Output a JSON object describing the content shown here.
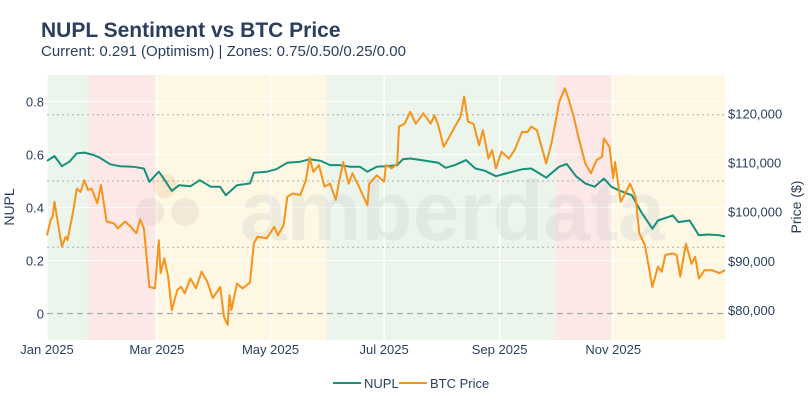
{
  "title": "NUPL Sentiment vs BTC Price",
  "subtitle": "Current: 0.291 (Optimism) | Zones: 0.75/0.50/0.25/0.00",
  "watermark": "amberdata",
  "chart_data": {
    "type": "line",
    "xlabel": "",
    "ylabel": "NUPL",
    "y2label": "Price ($)",
    "xlim": [
      "2025-01-01",
      "2025-12-31"
    ],
    "ylim": [
      -0.1,
      0.9
    ],
    "y2lim": [
      73900,
      127800
    ],
    "x_ticks": [
      {
        "date": "2025-01-01",
        "label": "Jan 2025"
      },
      {
        "date": "2025-03-01",
        "label": "Mar 2025"
      },
      {
        "date": "2025-05-01",
        "label": "May 2025"
      },
      {
        "date": "2025-07-01",
        "label": "Jul 2025"
      },
      {
        "date": "2025-09-01",
        "label": "Sep 2025"
      },
      {
        "date": "2025-11-01",
        "label": "Nov 2025"
      }
    ],
    "y_ticks": [
      {
        "v": 0,
        "label": "0"
      },
      {
        "v": 0.2,
        "label": "0.2"
      },
      {
        "v": 0.4,
        "label": "0.4"
      },
      {
        "v": 0.6,
        "label": "0.6"
      },
      {
        "v": 0.8,
        "label": "0.8"
      }
    ],
    "y2_ticks": [
      {
        "v": 80000,
        "label": "$80,000"
      },
      {
        "v": 90000,
        "label": "$90,000"
      },
      {
        "v": 100000,
        "label": "$100,000"
      },
      {
        "v": 110000,
        "label": "$110,000"
      },
      {
        "v": 120000,
        "label": "$120,000"
      }
    ],
    "zone_lines": [
      0.75,
      0.5,
      0.25,
      0
    ],
    "grid": true,
    "legend_position": "bottom",
    "zones": [
      {
        "start": "2025-01-01",
        "end": "2025-01-23",
        "color": "#ebf5ec"
      },
      {
        "start": "2025-01-23",
        "end": "2025-02-28",
        "color": "#fde8e8"
      },
      {
        "start": "2025-02-28",
        "end": "2025-05-31",
        "color": "#fdf7e4"
      },
      {
        "start": "2025-05-31",
        "end": "2025-10-01",
        "color": "#ebf5ec"
      },
      {
        "start": "2025-10-01",
        "end": "2025-10-31",
        "color": "#fde8e8"
      },
      {
        "start": "2025-10-31",
        "end": "2025-12-31",
        "color": "#fdf7e4"
      }
    ],
    "series": [
      {
        "name": "NUPL",
        "axis": "left",
        "color": "#16907a",
        "points": [
          [
            "2025-01-01",
            0.576
          ],
          [
            "2025-01-05",
            0.594
          ],
          [
            "2025-01-09",
            0.556
          ],
          [
            "2025-01-13",
            0.573
          ],
          [
            "2025-01-17",
            0.604
          ],
          [
            "2025-01-21",
            0.607
          ],
          [
            "2025-01-26",
            0.598
          ],
          [
            "2025-01-29",
            0.589
          ],
          [
            "2025-02-04",
            0.563
          ],
          [
            "2025-02-09",
            0.556
          ],
          [
            "2025-02-16",
            0.554
          ],
          [
            "2025-02-22",
            0.547
          ],
          [
            "2025-02-25",
            0.497
          ],
          [
            "2025-03-02",
            0.535
          ],
          [
            "2025-03-04",
            0.516
          ],
          [
            "2025-03-09",
            0.463
          ],
          [
            "2025-03-13",
            0.484
          ],
          [
            "2025-03-19",
            0.48
          ],
          [
            "2025-03-24",
            0.503
          ],
          [
            "2025-03-30",
            0.478
          ],
          [
            "2025-04-04",
            0.478
          ],
          [
            "2025-04-07",
            0.446
          ],
          [
            "2025-04-13",
            0.484
          ],
          [
            "2025-04-20",
            0.491
          ],
          [
            "2025-04-22",
            0.531
          ],
          [
            "2025-04-29",
            0.535
          ],
          [
            "2025-05-04",
            0.544
          ],
          [
            "2025-05-10",
            0.569
          ],
          [
            "2025-05-17",
            0.573
          ],
          [
            "2025-05-22",
            0.582
          ],
          [
            "2025-05-28",
            0.576
          ],
          [
            "2025-06-02",
            0.56
          ],
          [
            "2025-06-07",
            0.56
          ],
          [
            "2025-06-13",
            0.554
          ],
          [
            "2025-06-18",
            0.554
          ],
          [
            "2025-06-22",
            0.535
          ],
          [
            "2025-06-27",
            0.554
          ],
          [
            "2025-07-02",
            0.556
          ],
          [
            "2025-07-08",
            0.56
          ],
          [
            "2025-07-11",
            0.582
          ],
          [
            "2025-07-15",
            0.585
          ],
          [
            "2025-07-21",
            0.579
          ],
          [
            "2025-07-30",
            0.569
          ],
          [
            "2025-08-03",
            0.55
          ],
          [
            "2025-08-08",
            0.56
          ],
          [
            "2025-08-14",
            0.579
          ],
          [
            "2025-08-19",
            0.547
          ],
          [
            "2025-08-24",
            0.539
          ],
          [
            "2025-08-30",
            0.518
          ],
          [
            "2025-09-04",
            0.528
          ],
          [
            "2025-09-13",
            0.544
          ],
          [
            "2025-09-18",
            0.547
          ],
          [
            "2025-09-26",
            0.513
          ],
          [
            "2025-10-03",
            0.554
          ],
          [
            "2025-10-07",
            0.564
          ],
          [
            "2025-10-12",
            0.518
          ],
          [
            "2025-10-17",
            0.491
          ],
          [
            "2025-10-22",
            0.478
          ],
          [
            "2025-10-27",
            0.509
          ],
          [
            "2025-10-31",
            0.478
          ],
          [
            "2025-11-04",
            0.465
          ],
          [
            "2025-11-11",
            0.446
          ],
          [
            "2025-11-16",
            0.383
          ],
          [
            "2025-11-22",
            0.32
          ],
          [
            "2025-11-25",
            0.351
          ],
          [
            "2025-12-03",
            0.37
          ],
          [
            "2025-12-06",
            0.345
          ],
          [
            "2025-12-12",
            0.351
          ],
          [
            "2025-12-17",
            0.295
          ],
          [
            "2025-12-22",
            0.298
          ],
          [
            "2025-12-28",
            0.295
          ],
          [
            "2025-12-31",
            0.291
          ]
        ]
      },
      {
        "name": "BTC Price",
        "axis": "right",
        "color": "#f7931a",
        "points": [
          [
            "2025-01-01",
            95200
          ],
          [
            "2025-01-03",
            98300
          ],
          [
            "2025-01-04",
            99000
          ],
          [
            "2025-01-05",
            102000
          ],
          [
            "2025-01-07",
            97300
          ],
          [
            "2025-01-09",
            92900
          ],
          [
            "2025-01-11",
            94900
          ],
          [
            "2025-01-12",
            94200
          ],
          [
            "2025-01-15",
            100000
          ],
          [
            "2025-01-17",
            104700
          ],
          [
            "2025-01-19",
            104000
          ],
          [
            "2025-01-21",
            106400
          ],
          [
            "2025-01-23",
            104400
          ],
          [
            "2025-01-25",
            104700
          ],
          [
            "2025-01-28",
            101700
          ],
          [
            "2025-01-30",
            105400
          ],
          [
            "2025-02-02",
            98000
          ],
          [
            "2025-02-06",
            97600
          ],
          [
            "2025-02-08",
            96600
          ],
          [
            "2025-02-12",
            98000
          ],
          [
            "2025-02-15",
            96900
          ],
          [
            "2025-02-18",
            95600
          ],
          [
            "2025-02-20",
            98400
          ],
          [
            "2025-02-22",
            96600
          ],
          [
            "2025-02-25",
            84700
          ],
          [
            "2025-02-28",
            84400
          ],
          [
            "2025-03-02",
            94200
          ],
          [
            "2025-03-03",
            87500
          ],
          [
            "2025-03-05",
            90500
          ],
          [
            "2025-03-07",
            86800
          ],
          [
            "2025-03-09",
            80000
          ],
          [
            "2025-03-12",
            84100
          ],
          [
            "2025-03-14",
            84700
          ],
          [
            "2025-03-16",
            83400
          ],
          [
            "2025-03-19",
            86400
          ],
          [
            "2025-03-22",
            84400
          ],
          [
            "2025-03-25",
            87800
          ],
          [
            "2025-03-28",
            85800
          ],
          [
            "2025-03-31",
            82400
          ],
          [
            "2025-04-04",
            84700
          ],
          [
            "2025-04-06",
            78600
          ],
          [
            "2025-04-08",
            77000
          ],
          [
            "2025-04-09",
            83000
          ],
          [
            "2025-04-10",
            80000
          ],
          [
            "2025-04-13",
            85400
          ],
          [
            "2025-04-16",
            84400
          ],
          [
            "2025-04-20",
            85600
          ],
          [
            "2025-04-22",
            93500
          ],
          [
            "2025-04-24",
            94900
          ],
          [
            "2025-04-29",
            94600
          ],
          [
            "2025-05-03",
            96900
          ],
          [
            "2025-05-05",
            95200
          ],
          [
            "2025-05-08",
            97300
          ],
          [
            "2025-05-10",
            103000
          ],
          [
            "2025-05-13",
            103700
          ],
          [
            "2025-05-17",
            103400
          ],
          [
            "2025-05-20",
            106400
          ],
          [
            "2025-05-22",
            111000
          ],
          [
            "2025-05-24",
            108100
          ],
          [
            "2025-05-27",
            109500
          ],
          [
            "2025-05-30",
            105100
          ],
          [
            "2025-06-02",
            105700
          ],
          [
            "2025-06-05",
            102400
          ],
          [
            "2025-06-07",
            106400
          ],
          [
            "2025-06-09",
            110100
          ],
          [
            "2025-06-12",
            105700
          ],
          [
            "2025-06-14",
            107800
          ],
          [
            "2025-06-18",
            104700
          ],
          [
            "2025-06-22",
            101300
          ],
          [
            "2025-06-23",
            105700
          ],
          [
            "2025-06-27",
            107400
          ],
          [
            "2025-07-01",
            106100
          ],
          [
            "2025-07-02",
            109500
          ],
          [
            "2025-07-05",
            108800
          ],
          [
            "2025-07-08",
            109800
          ],
          [
            "2025-07-09",
            117300
          ],
          [
            "2025-07-12",
            117900
          ],
          [
            "2025-07-15",
            120300
          ],
          [
            "2025-07-18",
            117900
          ],
          [
            "2025-07-22",
            120000
          ],
          [
            "2025-07-26",
            117900
          ],
          [
            "2025-07-28",
            119600
          ],
          [
            "2025-07-30",
            117600
          ],
          [
            "2025-08-02",
            113200
          ],
          [
            "2025-08-05",
            115200
          ],
          [
            "2025-08-08",
            117300
          ],
          [
            "2025-08-11",
            119300
          ],
          [
            "2025-08-13",
            123400
          ],
          [
            "2025-08-15",
            118300
          ],
          [
            "2025-08-18",
            117900
          ],
          [
            "2025-08-21",
            113500
          ],
          [
            "2025-08-23",
            116600
          ],
          [
            "2025-08-26",
            110800
          ],
          [
            "2025-08-28",
            112500
          ],
          [
            "2025-08-30",
            108800
          ],
          [
            "2025-09-02",
            112200
          ],
          [
            "2025-09-06",
            110800
          ],
          [
            "2025-09-09",
            112500
          ],
          [
            "2025-09-13",
            116200
          ],
          [
            "2025-09-16",
            116200
          ],
          [
            "2025-09-18",
            117300
          ],
          [
            "2025-09-21",
            116600
          ],
          [
            "2025-09-24",
            112500
          ],
          [
            "2025-09-26",
            109800
          ],
          [
            "2025-09-29",
            114200
          ],
          [
            "2025-10-03",
            122300
          ],
          [
            "2025-10-06",
            125100
          ],
          [
            "2025-10-08",
            123000
          ],
          [
            "2025-10-11",
            119000
          ],
          [
            "2025-10-13",
            115600
          ],
          [
            "2025-10-17",
            109800
          ],
          [
            "2025-10-20",
            107800
          ],
          [
            "2025-10-23",
            110500
          ],
          [
            "2025-10-26",
            111200
          ],
          [
            "2025-10-27",
            114900
          ],
          [
            "2025-10-30",
            113200
          ],
          [
            "2025-11-01",
            106800
          ],
          [
            "2025-11-02",
            110100
          ],
          [
            "2025-11-05",
            102000
          ],
          [
            "2025-11-07",
            103400
          ],
          [
            "2025-11-10",
            105700
          ],
          [
            "2025-11-13",
            103000
          ],
          [
            "2025-11-15",
            95600
          ],
          [
            "2025-11-18",
            93200
          ],
          [
            "2025-11-22",
            84700
          ],
          [
            "2025-11-25",
            88800
          ],
          [
            "2025-11-27",
            87800
          ],
          [
            "2025-11-29",
            91200
          ],
          [
            "2025-12-03",
            91500
          ],
          [
            "2025-12-05",
            91200
          ],
          [
            "2025-12-07",
            86800
          ],
          [
            "2025-12-10",
            93500
          ],
          [
            "2025-12-13",
            89400
          ],
          [
            "2025-12-15",
            90800
          ],
          [
            "2025-12-17",
            86400
          ],
          [
            "2025-12-20",
            88100
          ],
          [
            "2025-12-24",
            88100
          ],
          [
            "2025-12-28",
            87500
          ],
          [
            "2025-12-31",
            88100
          ]
        ]
      }
    ]
  }
}
